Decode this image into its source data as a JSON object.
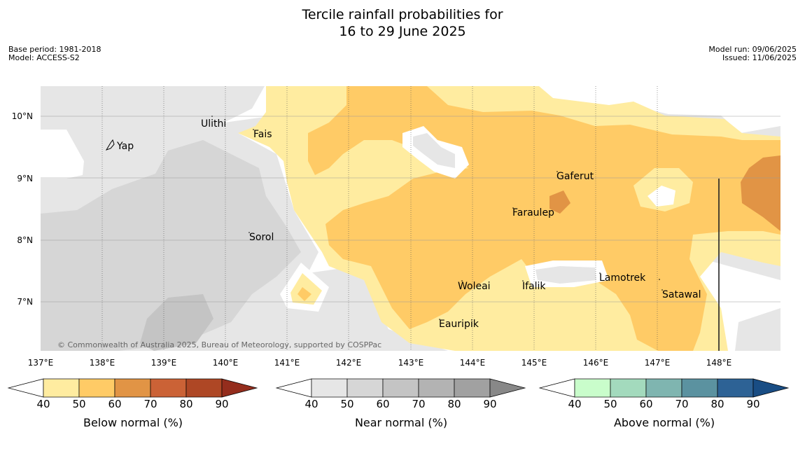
{
  "title": {
    "line1": "Tercile rainfall probabilities for",
    "line2": "16 to 29 June 2025"
  },
  "meta_left": {
    "base_period": "Base period: 1981-2018",
    "model": "Model: ACCESS-S2"
  },
  "meta_right": {
    "model_run": "Model run: 09/06/2025",
    "issued": "Issued: 11/06/2025"
  },
  "copyright": "© Commonwealth of Australia 2025, Bureau of Meteorology, supported by COSPPac",
  "lon_ticks": [
    "137°E",
    "138°E",
    "139°E",
    "140°E",
    "141°E",
    "142°E",
    "143°E",
    "144°E",
    "145°E",
    "146°E",
    "147°E",
    "148°E"
  ],
  "lat_ticks": [
    "10°N",
    "9°N",
    "8°N",
    "7°N"
  ],
  "places": [
    "Ulithi",
    "Fais",
    "Yap",
    "Gaferut",
    "Faraulep",
    "Sorol",
    "Lamotrek",
    "Woleai",
    "Ifalik",
    "Satawal",
    "Eauripik"
  ],
  "legends": [
    {
      "label": "Below normal (%)",
      "ticks": [
        "40",
        "50",
        "60",
        "70",
        "80",
        "90"
      ],
      "colors": [
        "#ffffff",
        "#ffeca0",
        "#ffcb66",
        "#e19445",
        "#cb6236",
        "#ae4725",
        "#942d1d"
      ]
    },
    {
      "label": "Near normal (%)",
      "ticks": [
        "40",
        "50",
        "60",
        "70",
        "80",
        "90"
      ],
      "colors": [
        "#ffffff",
        "#e6e6e6",
        "#d6d6d6",
        "#c4c4c4",
        "#b3b3b3",
        "#a1a1a1",
        "#888888"
      ]
    },
    {
      "label": "Above normal (%)",
      "ticks": [
        "40",
        "50",
        "60",
        "70",
        "80",
        "90"
      ],
      "colors": [
        "#ffffff",
        "#c9fdcb",
        "#a3dabd",
        "#7fb5b0",
        "#5b92a0",
        "#2d6295",
        "#194d84"
      ]
    }
  ],
  "colors": {
    "below_40": "#ffeca0",
    "below_50": "#ffcb66",
    "below_60": "#e19445",
    "near_40": "#e6e6e6",
    "near_50": "#d6d6d6",
    "near_60": "#c4c4c4"
  }
}
